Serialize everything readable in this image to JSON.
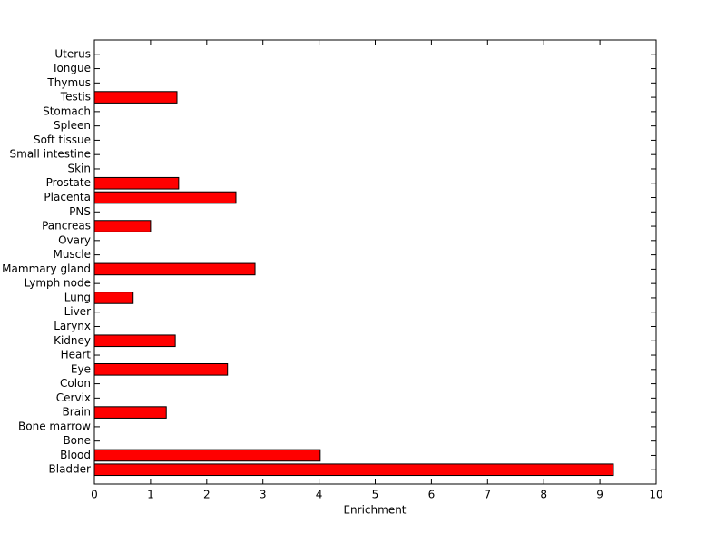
{
  "chart_data": {
    "type": "barh",
    "xlabel": "Enrichment",
    "categories": [
      "Bladder",
      "Blood",
      "Bone",
      "Bone marrow",
      "Brain",
      "Cervix",
      "Colon",
      "Eye",
      "Heart",
      "Kidney",
      "Larynx",
      "Liver",
      "Lung",
      "Lymph node",
      "Mammary gland",
      "Muscle",
      "Ovary",
      "Pancreas",
      "PNS",
      "Placenta",
      "Prostate",
      "Skin",
      "Small intestine",
      "Soft tissue",
      "Spleen",
      "Stomach",
      "Testis",
      "Thymus",
      "Tongue",
      "Uterus"
    ],
    "values": [
      9.24,
      4.02,
      0,
      0,
      1.28,
      0,
      0,
      2.37,
      0,
      1.44,
      0,
      0,
      0.69,
      0,
      2.86,
      0,
      0,
      1.0,
      0,
      2.52,
      1.5,
      0,
      0,
      0,
      0,
      0,
      1.47,
      0,
      0,
      0
    ],
    "color": "#ff0000",
    "xlim": [
      0,
      10
    ],
    "xticks": [
      0,
      1,
      2,
      3,
      4,
      5,
      6,
      7,
      8,
      9,
      10
    ]
  }
}
